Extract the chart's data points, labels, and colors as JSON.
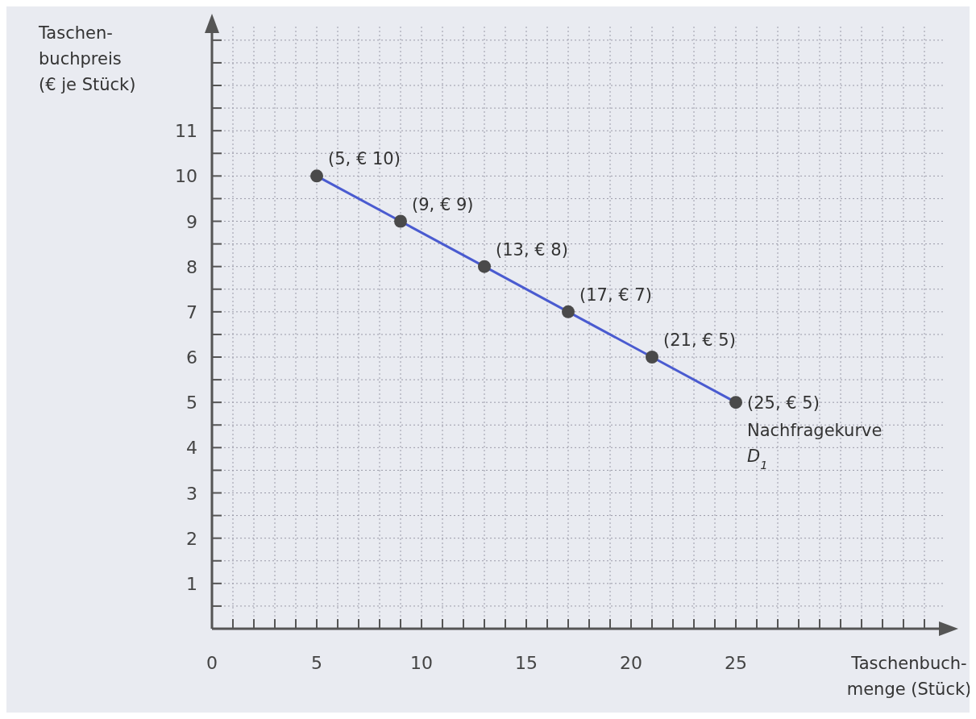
{
  "chart_data": {
    "type": "line",
    "xlabel": "Taschenbuch-\nmenge (Stück)",
    "ylabel": "Taschen-\nbuchpreis\n(€ je Stück)",
    "x": [
      5,
      9,
      13,
      17,
      21,
      25
    ],
    "series": [
      {
        "name": "Nachfragekurve D$_{1}$",
        "color": "#4a5bd0",
        "values": [
          10,
          9,
          8,
          7,
          6,
          5
        ],
        "value_labels": [
          "(5, € 10)",
          "(9, € 9)",
          "(13, € 8)",
          "(17, € 7)",
          "(21, € 5)",
          "(25, € 5)"
        ]
      }
    ],
    "marker": "circle",
    "line_style": "solid",
    "grid": true,
    "xlim": [
      0,
      35
    ],
    "ylim": [
      0,
      13.3
    ],
    "xticks": [
      0,
      {
        "value": 1,
        "label": null
      },
      {
        "value": 2,
        "label": null
      },
      {
        "value": 3,
        "label": null
      },
      {
        "value": 4,
        "label": null
      },
      5,
      {
        "value": 6,
        "label": null
      },
      {
        "value": 7,
        "label": null
      },
      {
        "value": 8,
        "label": null
      },
      {
        "value": 9,
        "label": null
      },
      10,
      {
        "value": 11,
        "label": null
      },
      {
        "value": 12,
        "label": null
      },
      {
        "value": 13,
        "label": null
      },
      {
        "value": 14,
        "label": null
      },
      15,
      {
        "value": 16,
        "label": null
      },
      {
        "value": 17,
        "label": null
      },
      {
        "value": 18,
        "label": null
      },
      {
        "value": 19,
        "label": null
      },
      20,
      {
        "value": 21,
        "label": null
      },
      {
        "value": 22,
        "label": null
      },
      {
        "value": 23,
        "label": null
      },
      {
        "value": 24,
        "label": null
      },
      25,
      {
        "value": 26,
        "label": null
      },
      {
        "value": 27,
        "label": null
      },
      {
        "value": 28,
        "label": null
      },
      {
        "value": 29,
        "label": null
      },
      {
        "value": 30,
        "label": null
      },
      {
        "value": 31,
        "label": null
      },
      {
        "value": 32,
        "label": null
      },
      {
        "value": 33,
        "label": null
      },
      {
        "value": 34,
        "label": null
      }
    ],
    "yticks": [
      {
        "value": 0.5,
        "label": null
      },
      1,
      {
        "value": 1.5,
        "label": null
      },
      2,
      {
        "value": 2.5,
        "label": null
      },
      3,
      {
        "value": 3.5,
        "label": null
      },
      4,
      {
        "value": 4.5,
        "label": null
      },
      5,
      {
        "value": 5.5,
        "label": null
      },
      6,
      {
        "value": 6.5,
        "label": null
      },
      7,
      {
        "value": 7.5,
        "label": null
      },
      8,
      {
        "value": 8.5,
        "label": null
      },
      9,
      {
        "value": 9.5,
        "label": null
      },
      10,
      {
        "value": 10.5,
        "label": null
      },
      11,
      {
        "value": 11.5,
        "label": null
      },
      {
        "value": 12,
        "label": null
      },
      {
        "value": 12.5,
        "label": null
      },
      {
        "value": 13,
        "label": null
      }
    ]
  }
}
